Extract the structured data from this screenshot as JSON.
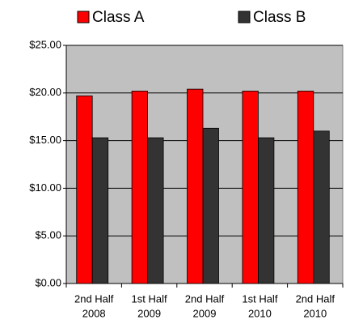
{
  "chart_data": {
    "type": "bar",
    "categories": [
      [
        "2nd Half",
        "2008"
      ],
      [
        "1st Half",
        "2009"
      ],
      [
        "2nd Half",
        "2009"
      ],
      [
        "1st Half",
        "2010"
      ],
      [
        "2nd Half",
        "2010"
      ]
    ],
    "series": [
      {
        "name": "Class A",
        "color": "#ff0000",
        "values": [
          19.7,
          20.2,
          20.4,
          20.2,
          20.2
        ]
      },
      {
        "name": "Class B",
        "color": "#333333",
        "values": [
          15.3,
          15.3,
          16.3,
          15.3,
          16.0
        ]
      }
    ],
    "ylim": [
      0,
      25
    ],
    "yticks": [
      {
        "value": 0,
        "label": "$0.00"
      },
      {
        "value": 5,
        "label": "$5.00"
      },
      {
        "value": 10,
        "label": "$10.00"
      },
      {
        "value": 15,
        "label": "$15.00"
      },
      {
        "value": 20,
        "label": "$20.00"
      },
      {
        "value": 25,
        "label": "$25.00"
      }
    ],
    "grid": true,
    "legend": "top"
  }
}
